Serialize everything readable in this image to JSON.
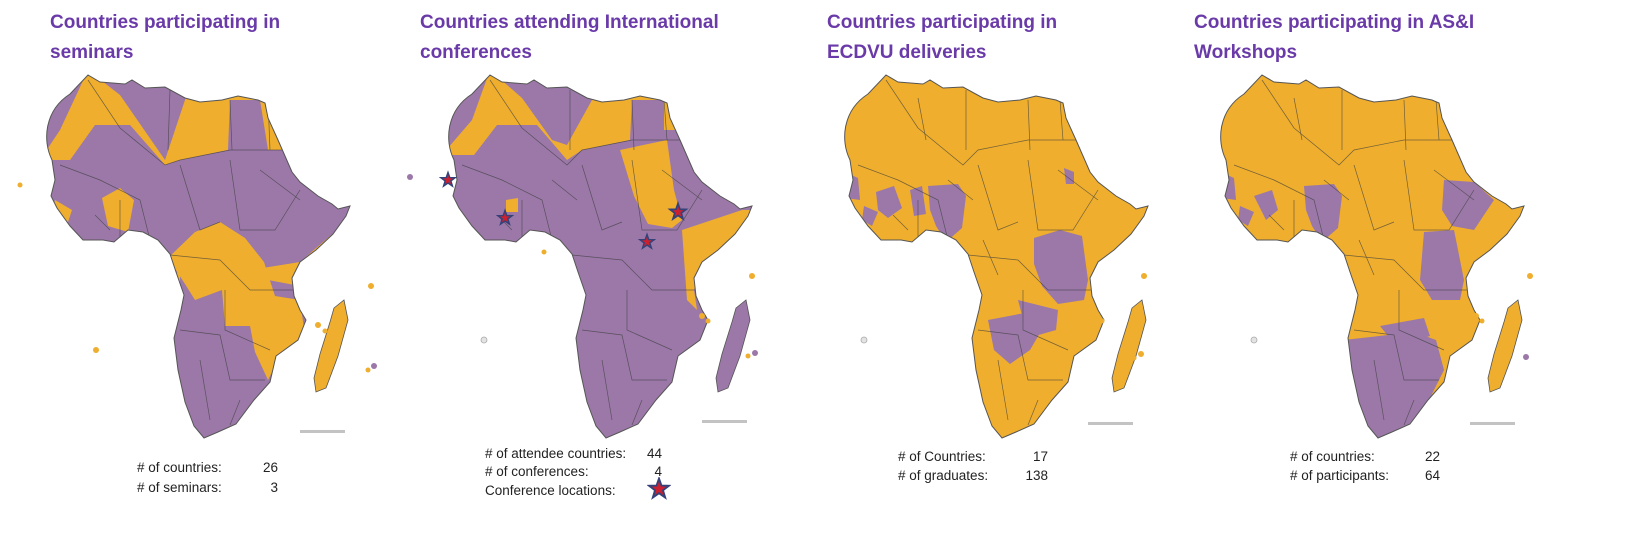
{
  "colors": {
    "participating": "#9b78a8",
    "not_participating": "#efae2d",
    "title": "#6a3aa8",
    "marker": "#cc1f2f",
    "marker_outline": "#35427a"
  },
  "panels": [
    {
      "title": "Countries participating in seminars",
      "stats": [
        {
          "label": "# of countries:",
          "value": "26"
        },
        {
          "label": "# of seminars:",
          "value": "3"
        }
      ]
    },
    {
      "title": "Countries attending International conferences",
      "stats": [
        {
          "label": "# of attendee countries:",
          "value": "44"
        },
        {
          "label": "# of conferences:",
          "value": "4"
        },
        {
          "label": "Conference locations:",
          "value": ""
        }
      ],
      "legend_icon": "star-marker-icon"
    },
    {
      "title": "Countries participating in ECDVU deliveries",
      "stats": [
        {
          "label": "# of Countries:",
          "value": "17"
        },
        {
          "label": "# of graduates:",
          "value": "138"
        }
      ]
    },
    {
      "title": "Countries participating in AS&I Workshops",
      "stats": [
        {
          "label": "# of countries:",
          "value": "22"
        },
        {
          "label": "# of participants:",
          "value": "64"
        }
      ]
    }
  ]
}
